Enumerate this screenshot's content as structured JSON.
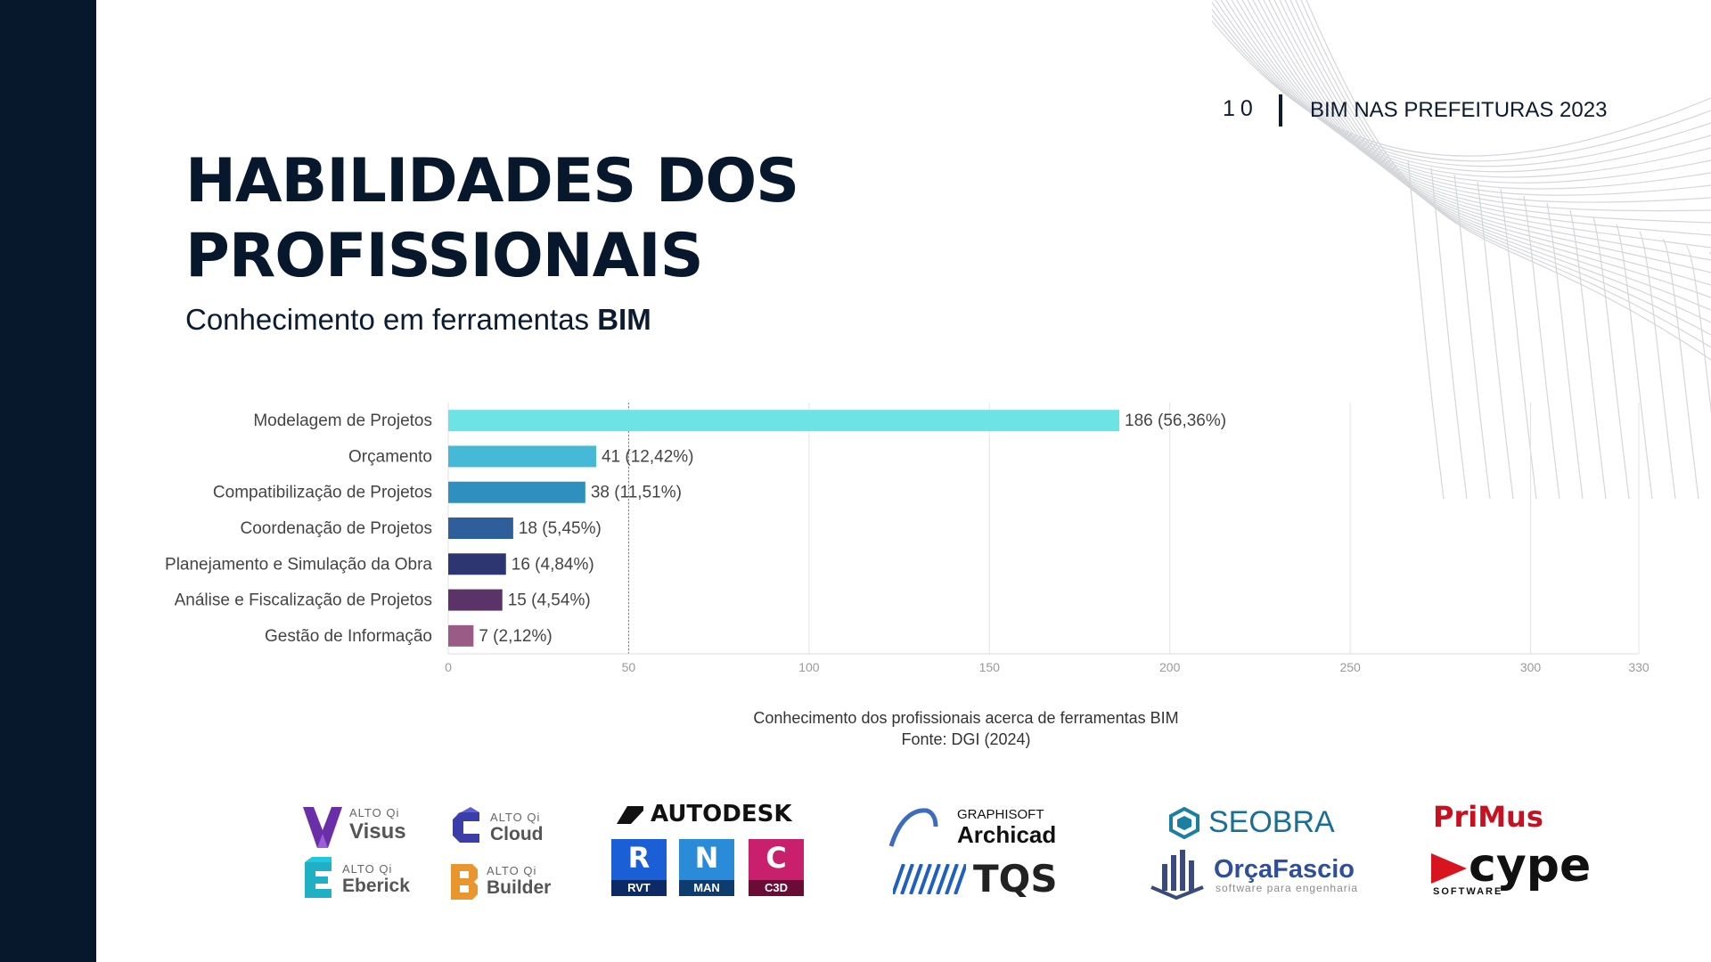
{
  "header": {
    "page_number": "10",
    "report_title": "BIM NAS PREFEITURAS 2023"
  },
  "title_line1": "HABILIDADES DOS",
  "title_line2": "PROFISSIONAIS",
  "subtitle_prefix": "Conhecimento em ferramentas ",
  "subtitle_bold": "BIM",
  "chart_data": {
    "type": "bar",
    "orientation": "horizontal",
    "categories": [
      "Modelagem de Projetos",
      "Orçamento",
      "Compatibilização de Projetos",
      "Coordenação de Projetos",
      "Planejamento e Simulação da Obra",
      "Análise e Fiscalização de Projetos",
      "Gestão de Informação"
    ],
    "values": [
      186,
      41,
      38,
      18,
      16,
      15,
      7
    ],
    "data_labels": [
      "186 (56,36%)",
      "41 (12,42%)",
      "38 (11,51%)",
      "18 (5,45%)",
      "16 (4,84%)",
      "15 (4,54%)",
      "7 (2,12%)"
    ],
    "bar_colors": [
      "#6ee3e6",
      "#45b9d6",
      "#2f8fbf",
      "#2e5f9a",
      "#2d3670",
      "#5a3468",
      "#9a5c86"
    ],
    "xlim": [
      0,
      330
    ],
    "xticks": [
      0,
      50,
      100,
      150,
      200,
      250,
      300,
      330
    ],
    "grid": true
  },
  "caption": {
    "line1": "Conhecimento dos profissionais acerca de ferramentas BIM",
    "line2": "Fonte: DGI (2024)"
  },
  "logos": {
    "altoqi_small": "ALTO Qi",
    "visus": "Visus",
    "cloud": "Cloud",
    "eberick": "Eberick",
    "builder": "Builder",
    "autodesk": "AUTODESK",
    "rvt_letter": "R",
    "rvt": "RVT",
    "man_letter": "N",
    "man": "MAN",
    "c3d_letter": "C",
    "c3d": "C3D",
    "graphisoft": "GRAPHISOFT",
    "archicad": "Archicad",
    "tqs": "TQS",
    "seobra": "SEOBRA",
    "orcafascio": "OrçaFascio",
    "orcafascio_tag": "software para engenharia",
    "primus": "PriMus",
    "cype": "cype",
    "cype_tag": "SOFTWARE"
  },
  "colors": {
    "navy": "#08182c",
    "grid": "#e3e3e3"
  }
}
